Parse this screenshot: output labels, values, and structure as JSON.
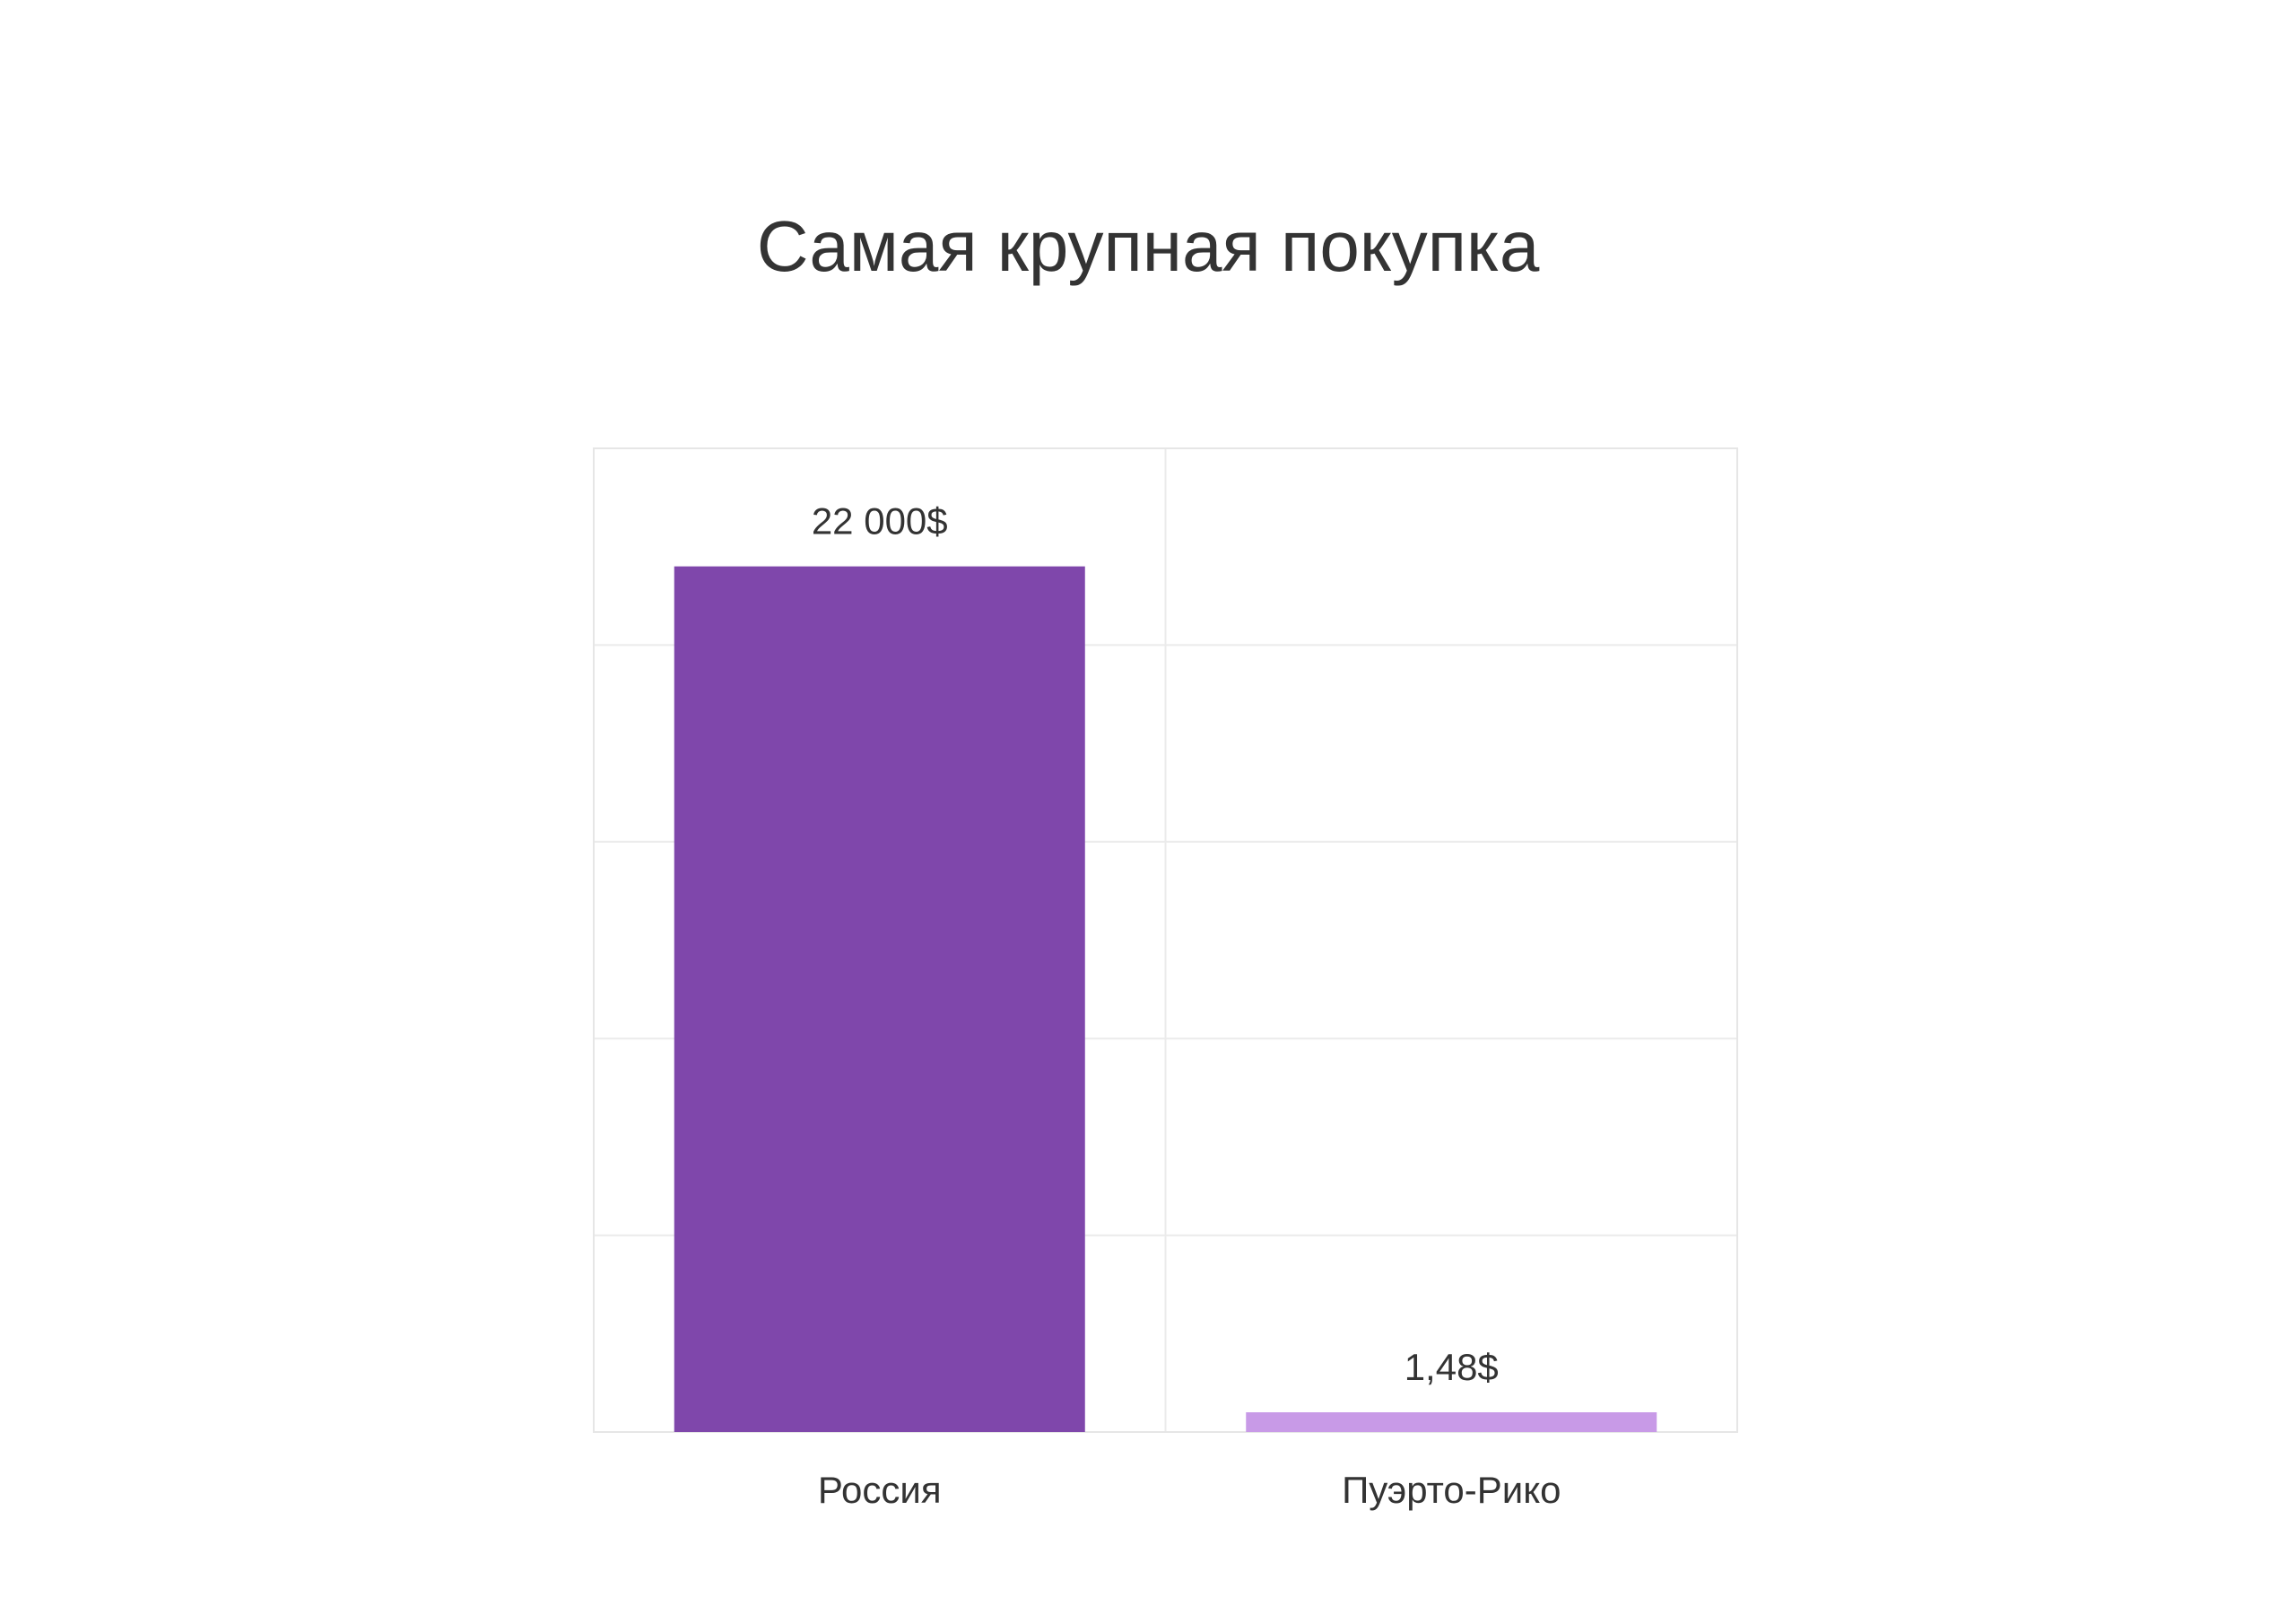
{
  "chart_data": {
    "type": "bar",
    "title": "Самая крупная покупка",
    "xlabel": "",
    "ylabel": "",
    "categories": [
      "Россия",
      "Пуэрто-Рико"
    ],
    "values": [
      22000,
      1.48
    ],
    "data_labels": [
      "22 000$",
      "1,48$"
    ],
    "colors": [
      "#7f47ab",
      "#c89ae7"
    ],
    "ylim": [
      0,
      25000
    ],
    "grid": true,
    "legend": "none"
  }
}
